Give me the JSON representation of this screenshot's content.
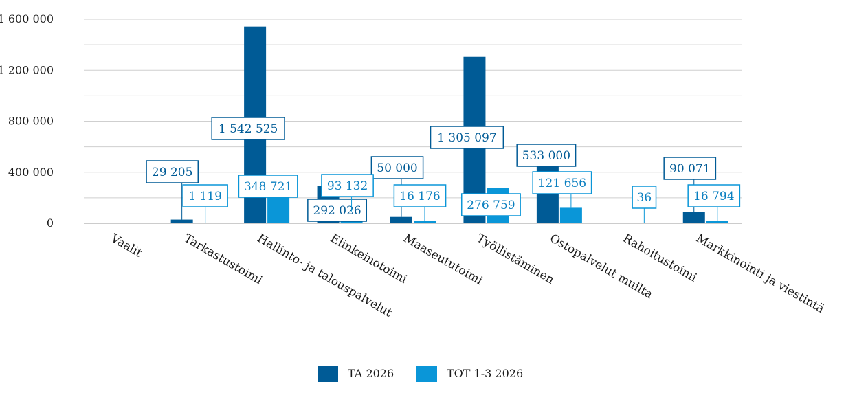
{
  "chart_data": {
    "type": "bar",
    "title": "",
    "xlabel": "",
    "ylabel": "",
    "ylim": [
      0,
      1600000
    ],
    "yticks": [
      0,
      400000,
      800000,
      1200000,
      1600000
    ],
    "ytick_labels": [
      "0",
      "400 000",
      "800 000",
      "1 200 000",
      "1 600 000"
    ],
    "grid": true,
    "legend_position": "bottom",
    "categories": [
      "Vaalit",
      "Tarkastustoimi",
      "Hallinto- ja talouspalvelut",
      "Elinkeinotoimi",
      "Maaseututoimi",
      "Työllistäminen",
      "Ostopalvelut muilta",
      "Rahoitustoimi",
      "Markkinointi ja viestintä"
    ],
    "series": [
      {
        "name": "TA 2026",
        "color": "#005b96",
        "values": [
          0,
          29205,
          1542525,
          292026,
          50000,
          1305097,
          533000,
          0,
          90071
        ],
        "labels": [
          "",
          "29 205",
          "1 542 525",
          "292 026",
          "50 000",
          "1 305 097",
          "533 000",
          "",
          "90 071"
        ]
      },
      {
        "name": "TOT 1-3 2026",
        "color": "#0a96d8",
        "values": [
          0,
          1119,
          348721,
          93132,
          16176,
          276759,
          121656,
          36,
          16794
        ],
        "labels": [
          "",
          "1 119",
          "348 721",
          "93 132",
          "16 176",
          "276 759",
          "121 656",
          "36",
          "16 794"
        ]
      }
    ]
  }
}
